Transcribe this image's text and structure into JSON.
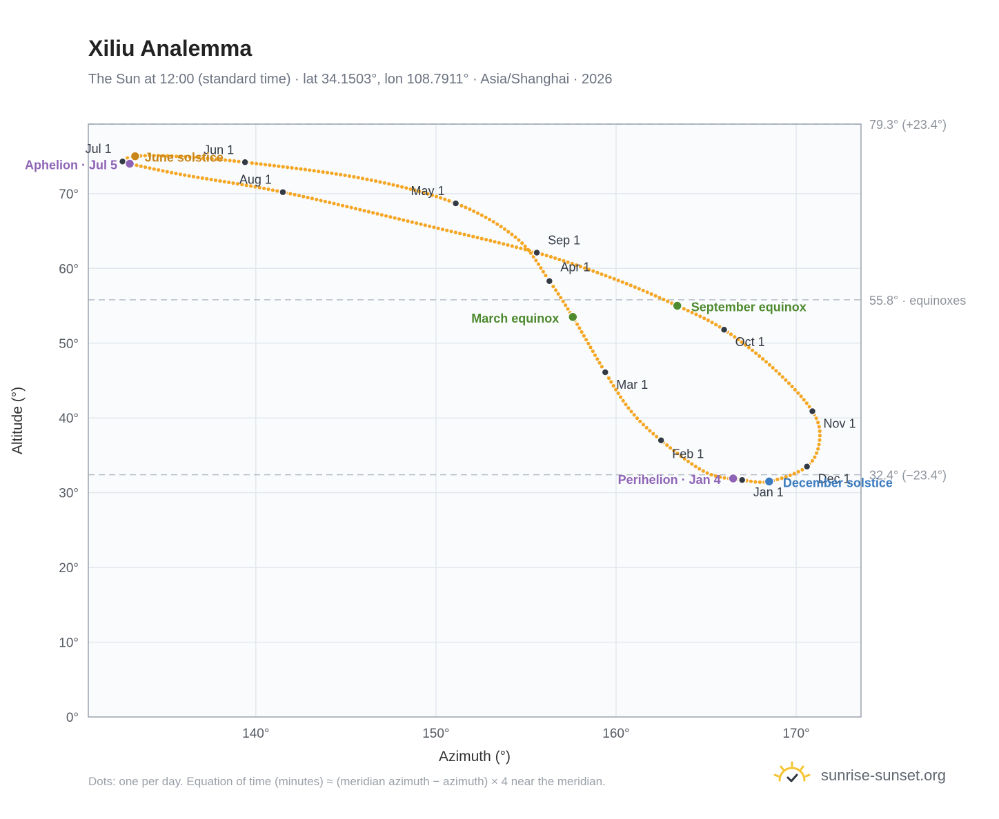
{
  "title": "Xiliu Analemma",
  "subtitle": "The Sun at 12:00 (standard time) · lat 34.1503°, lon 108.7911° · Asia/Shanghai · 2026",
  "footnote": "Dots: one per day. Equation of time (minutes) ≈ (meridian azimuth − azimuth) × 4 near the meridian.",
  "brand": {
    "name": "sunrise-sunset.org",
    "icon": "sun-logo-icon"
  },
  "colors": {
    "curve": "#f5a623",
    "month_marker": "#333a44",
    "june_solstice": "#c8861a",
    "december_solstice": "#3b7bbf",
    "equinox": "#4e8a2e",
    "apsis": "#8e63b5",
    "plot_bg": "#f9fbfd",
    "grid": "#e3e8ee",
    "reference_line": "#b8bec6"
  },
  "chart_data": {
    "type": "scatter",
    "title": "Xiliu Analemma",
    "xlabel": "Azimuth (°)",
    "ylabel": "Altitude (°)",
    "xlim": [
      130.7,
      173.6
    ],
    "ylim": [
      0,
      79.3
    ],
    "x_ticks": [
      {
        "value": 140,
        "label": "140°"
      },
      {
        "value": 150,
        "label": "150°"
      },
      {
        "value": 160,
        "label": "160°"
      },
      {
        "value": 170,
        "label": "170°"
      }
    ],
    "y_ticks": [
      {
        "value": 0,
        "label": "0°"
      },
      {
        "value": 10,
        "label": "10°"
      },
      {
        "value": 20,
        "label": "20°"
      },
      {
        "value": 30,
        "label": "30°"
      },
      {
        "value": 40,
        "label": "40°"
      },
      {
        "value": 50,
        "label": "50°"
      },
      {
        "value": 60,
        "label": "60°"
      },
      {
        "value": 70,
        "label": "70°"
      }
    ],
    "grid": true,
    "reference_lines": [
      {
        "y": 79.3,
        "label": "79.3° (+23.4°)"
      },
      {
        "y": 55.8,
        "label": "55.8° · equinoxes"
      },
      {
        "y": 32.4,
        "label": "32.4° (−23.4°)"
      }
    ],
    "month_markers": [
      {
        "label": "Jan 1",
        "az": 167.0,
        "alt": 31.7
      },
      {
        "label": "Feb 1",
        "az": 162.5,
        "alt": 37.0
      },
      {
        "label": "Mar 1",
        "az": 159.4,
        "alt": 46.1
      },
      {
        "label": "Apr 1",
        "az": 156.3,
        "alt": 58.3
      },
      {
        "label": "May 1",
        "az": 151.1,
        "alt": 68.7
      },
      {
        "label": "Jun 1",
        "az": 139.4,
        "alt": 74.2
      },
      {
        "label": "Jul 1",
        "az": 132.6,
        "alt": 74.3
      },
      {
        "label": "Aug 1",
        "az": 141.5,
        "alt": 70.2
      },
      {
        "label": "Sep 1",
        "az": 155.6,
        "alt": 62.1
      },
      {
        "label": "Oct 1",
        "az": 166.0,
        "alt": 51.8
      },
      {
        "label": "Nov 1",
        "az": 170.9,
        "alt": 40.9
      },
      {
        "label": "Dec 1",
        "az": 170.6,
        "alt": 33.5
      }
    ],
    "events": [
      {
        "label": "June solstice",
        "az": 133.3,
        "alt": 75.0,
        "kind": "june_solstice"
      },
      {
        "label": "Aphelion · Jul 5",
        "az": 133.0,
        "alt": 74.0,
        "kind": "apsis"
      },
      {
        "label": "March equinox",
        "az": 157.6,
        "alt": 53.5,
        "kind": "equinox"
      },
      {
        "label": "September equinox",
        "az": 163.4,
        "alt": 55.0,
        "kind": "equinox"
      },
      {
        "label": "Perihelion · Jan 4",
        "az": 166.5,
        "alt": 31.9,
        "kind": "apsis"
      },
      {
        "label": "December solstice",
        "az": 168.5,
        "alt": 31.5,
        "kind": "december_solstice"
      }
    ],
    "curve_path": [
      {
        "az": 167.0,
        "alt": 31.7
      },
      {
        "az": 165.0,
        "alt": 32.7
      },
      {
        "az": 162.5,
        "alt": 37.0
      },
      {
        "az": 160.8,
        "alt": 41.0
      },
      {
        "az": 159.4,
        "alt": 46.1
      },
      {
        "az": 157.6,
        "alt": 53.5
      },
      {
        "az": 156.3,
        "alt": 58.3
      },
      {
        "az": 154.5,
        "alt": 64.0
      },
      {
        "az": 151.1,
        "alt": 68.7
      },
      {
        "az": 146.0,
        "alt": 72.0
      },
      {
        "az": 139.4,
        "alt": 74.2
      },
      {
        "az": 135.5,
        "alt": 75.0
      },
      {
        "az": 133.3,
        "alt": 75.0
      },
      {
        "az": 132.6,
        "alt": 74.3
      },
      {
        "az": 133.0,
        "alt": 74.0
      },
      {
        "az": 136.0,
        "alt": 72.5
      },
      {
        "az": 141.5,
        "alt": 70.2
      },
      {
        "az": 149.0,
        "alt": 66.0
      },
      {
        "az": 155.6,
        "alt": 62.1
      },
      {
        "az": 160.0,
        "alt": 58.5
      },
      {
        "az": 163.4,
        "alt": 55.0
      },
      {
        "az": 166.0,
        "alt": 51.8
      },
      {
        "az": 168.8,
        "alt": 46.5
      },
      {
        "az": 170.9,
        "alt": 40.9
      },
      {
        "az": 171.3,
        "alt": 37.0
      },
      {
        "az": 170.6,
        "alt": 33.5
      },
      {
        "az": 168.5,
        "alt": 31.5
      },
      {
        "az": 167.0,
        "alt": 31.7
      }
    ]
  }
}
